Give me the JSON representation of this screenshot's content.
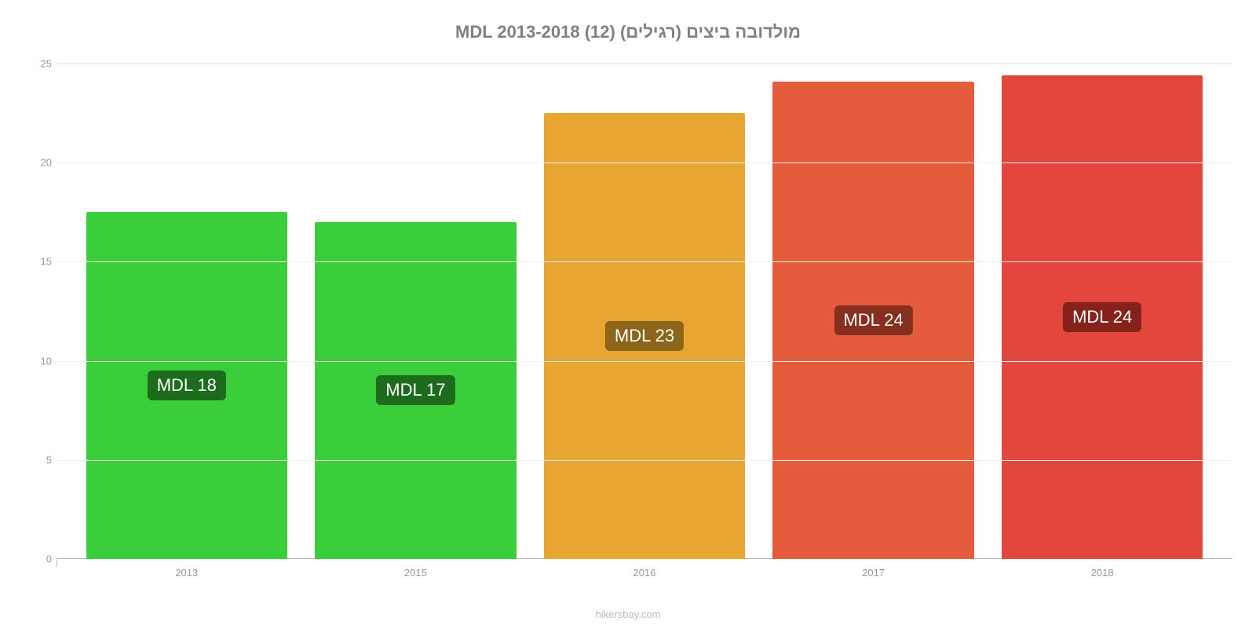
{
  "chart": {
    "type": "bar",
    "title": "מולדובה ביצים (רגילים) (12) MDL 2013-2018",
    "title_color": "#808080",
    "title_fontsize": 22,
    "background_color": "#ffffff",
    "grid_color": "#f0f0f0",
    "axis_color": "#bbbbbb",
    "tick_label_color": "#999999",
    "tick_label_fontsize": 13,
    "ylim": [
      0,
      25
    ],
    "ytick_step": 5,
    "yticks": [
      0,
      5,
      10,
      15,
      20,
      25
    ],
    "categories": [
      "2013",
      "2015",
      "2016",
      "2017",
      "2018"
    ],
    "values": [
      17.5,
      17.0,
      22.5,
      24.1,
      24.4
    ],
    "bar_colors": [
      "#3bce3b",
      "#3bce3b",
      "#e6a631",
      "#e45c3c",
      "#e2463c"
    ],
    "bar_labels": [
      "MDL 18",
      "MDL 17",
      "MDL 23",
      "MDL 24",
      "MDL 24"
    ],
    "bar_label_bg_colors": [
      "#1d6b1d",
      "#1d6b1d",
      "#8a651a",
      "#872f1e",
      "#85221c"
    ],
    "bar_label_color": "#ffffff",
    "bar_label_fontsize": 22,
    "bar_width": 0.88,
    "attribution": "hikersbay.com",
    "attribution_color": "#bbbbbb"
  }
}
